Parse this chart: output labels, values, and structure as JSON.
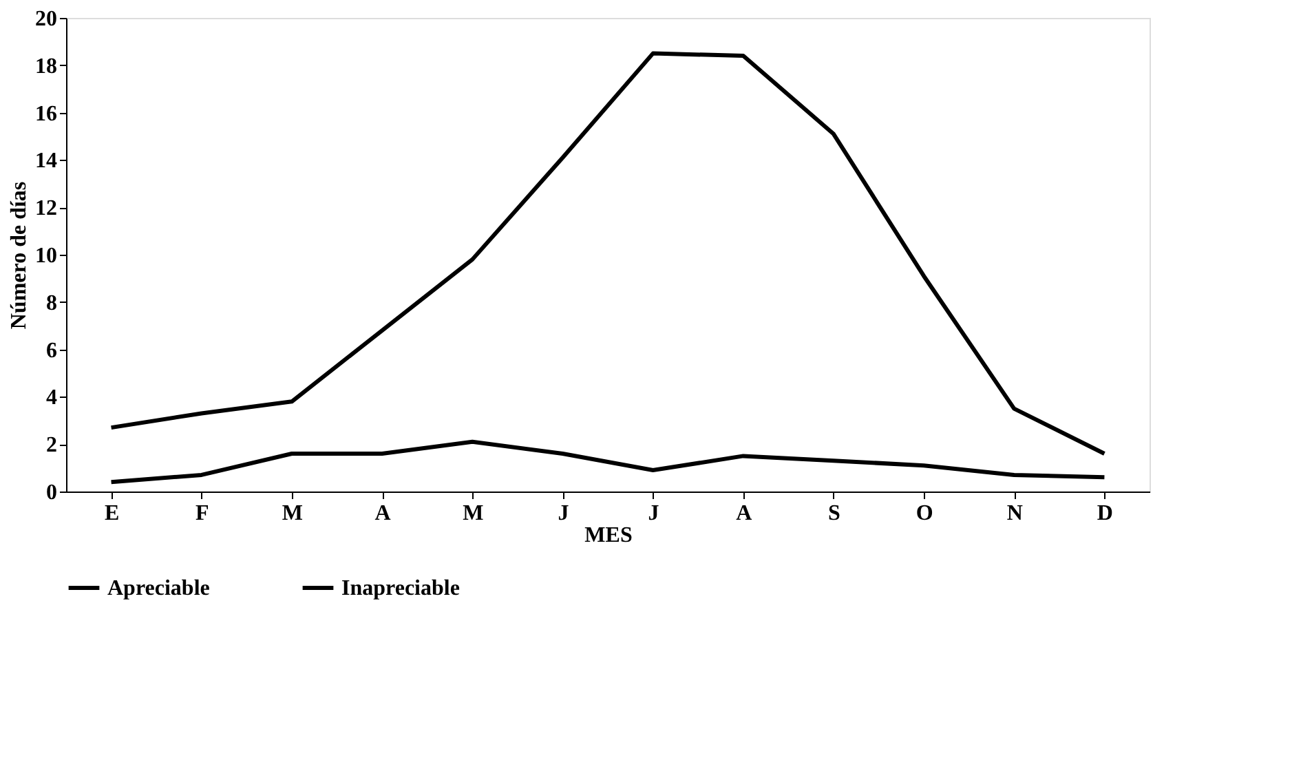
{
  "chart_data": {
    "type": "line",
    "xlabel": "MES",
    "ylabel": "Número de días",
    "categories": [
      "E",
      "F",
      "M",
      "A",
      "M",
      "J",
      "J",
      "A",
      "S",
      "O",
      "N",
      "D"
    ],
    "series": [
      {
        "name": "Apreciable",
        "color": "#000000",
        "values": [
          0.4,
          0.7,
          1.6,
          1.6,
          2.1,
          1.6,
          0.9,
          1.5,
          1.3,
          1.1,
          0.7,
          0.6
        ]
      },
      {
        "name": "Inapreciable",
        "color": "#000000",
        "values": [
          2.7,
          3.3,
          3.8,
          6.8,
          9.8,
          14.1,
          18.5,
          18.4,
          15.1,
          9.1,
          3.5,
          1.6
        ]
      }
    ],
    "ylim": [
      0,
      20
    ],
    "yticks": [
      0,
      2,
      4,
      6,
      8,
      10,
      12,
      14,
      16,
      18,
      20
    ],
    "grid": false,
    "legend": "bottom",
    "marker": "none",
    "line_style": "solid"
  }
}
